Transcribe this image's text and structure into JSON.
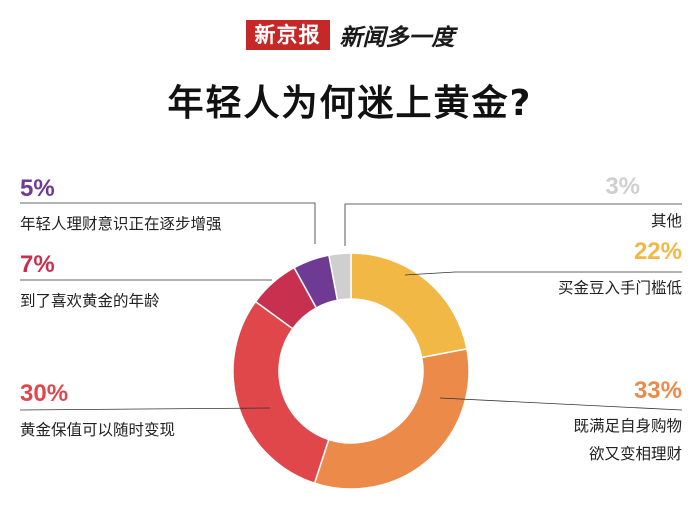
{
  "header": {
    "logo_text": "新京报",
    "brand_text": "新闻多一度"
  },
  "chart_data": {
    "type": "pie",
    "title": "年轻人为何迷上黄金?",
    "categories": [
      "买金豆入手门槛低",
      "既满足自身购物欲又变相理财",
      "黄金保值可以随时变现",
      "到了喜欢黄金的年龄",
      "年轻人理财意识正在逐步增强",
      "其他"
    ],
    "values": [
      22,
      33,
      30,
      7,
      5,
      3
    ],
    "value_labels": [
      "22%",
      "33%",
      "30%",
      "7%",
      "5%",
      "3%"
    ],
    "colors": [
      "#f2b845",
      "#ec8a4a",
      "#e0474b",
      "#c8304f",
      "#6e3a93",
      "#cfcfcf"
    ],
    "donut": true,
    "legend": "callout labels with leader lines"
  }
}
